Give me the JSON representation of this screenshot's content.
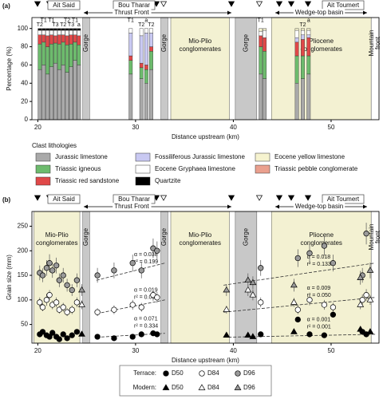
{
  "chart_data": [
    {
      "type": "bar",
      "panel": "(a)",
      "xlabel": "Distance upstream (km)",
      "ylabel": "Percentage (%)",
      "xlim": [
        19.4,
        54.9
      ],
      "xticks": [
        20,
        30,
        40,
        50
      ],
      "ylim": [
        0,
        112
      ],
      "yticks": [
        0,
        20,
        40,
        60,
        80,
        100
      ],
      "locations": [
        "Ait Said",
        "Bou Tharar",
        "Ait Toumert"
      ],
      "zones": [
        "Thrust Front",
        "Wedge-top basin"
      ],
      "regions": [
        {
          "x": [
            24.6,
            25.3
          ],
          "color": "#c8c8c8",
          "label": [
            "Gorge"
          ]
        },
        {
          "x": [
            32.6,
            33.3
          ],
          "color": "#c8c8c8",
          "label": [
            "Gorge"
          ]
        },
        {
          "x": [
            33.6,
            39.6
          ],
          "color": "#f3f1d2",
          "label": [
            "Mio-Plio",
            "conglomerates"
          ]
        },
        {
          "x": [
            40.2,
            42.4
          ],
          "color": "#c8c8c8",
          "label": [
            "Gorge"
          ]
        },
        {
          "x": [
            43.9,
            54.1
          ],
          "color": "#f3f1d2",
          "label": [
            "Pliocene",
            "conglomerates"
          ]
        },
        {
          "x": [
            54.1,
            54.9
          ],
          "color": "#ffffff",
          "label": [
            "Mountain",
            "front"
          ]
        }
      ],
      "x": [
        20.2,
        20.6,
        21.0,
        21.4,
        21.8,
        22.2,
        22.6,
        23.0,
        23.4,
        23.8,
        24.2,
        29.5,
        30.6,
        31.1,
        31.6,
        42.8,
        43.2,
        46.5,
        47.1,
        47.7
      ],
      "bar_labels": [
        "T2",
        "T1",
        null,
        "T1",
        "T3",
        null,
        "T2",
        "T2",
        "T3",
        "T1",
        "a",
        "T1",
        "T2",
        "a",
        "T2",
        "T1",
        null,
        null,
        "T2",
        "a"
      ],
      "legend_title": "Clast lithologies",
      "series": [
        {
          "name": "Jurassic limestone",
          "color": "#a9a9a9",
          "values": [
            55,
            60,
            50,
            58,
            62,
            55,
            60,
            52,
            58,
            65,
            60,
            50,
            45,
            40,
            55,
            50,
            45,
            40,
            45,
            50
          ]
        },
        {
          "name": "Triassic igneous",
          "color": "#6dbb6d",
          "values": [
            28,
            25,
            30,
            25,
            22,
            28,
            25,
            30,
            25,
            20,
            22,
            15,
            12,
            15,
            20,
            30,
            30,
            30,
            25,
            20
          ]
        },
        {
          "name": "Triassic red sandstone",
          "color": "#e04848",
          "values": [
            10,
            8,
            12,
            10,
            8,
            10,
            8,
            10,
            10,
            8,
            10,
            5,
            5,
            5,
            5,
            12,
            15,
            15,
            18,
            20
          ]
        },
        {
          "name": "Fossiliferous Jurassic limestone",
          "color": "#c9c9f2",
          "values": [
            0,
            0,
            0,
            0,
            0,
            0,
            0,
            0,
            0,
            0,
            0,
            25,
            30,
            35,
            15,
            0,
            0,
            5,
            5,
            3
          ]
        },
        {
          "name": "Eocene Gryphaea limestone",
          "color": "#ffffff",
          "values": [
            5,
            5,
            6,
            5,
            6,
            5,
            5,
            6,
            5,
            5,
            6,
            5,
            8,
            5,
            5,
            5,
            8,
            8,
            5,
            5
          ]
        },
        {
          "name": "Quartzite",
          "color": "#000000",
          "values": [
            2,
            2,
            2,
            2,
            2,
            2,
            2,
            2,
            2,
            2,
            2,
            0,
            0,
            0,
            0,
            0,
            0,
            0,
            0,
            0
          ]
        },
        {
          "name": "Eocene yellow limestone",
          "color": "#f6f3cf",
          "values": [
            0,
            0,
            0,
            0,
            0,
            0,
            0,
            0,
            0,
            0,
            0,
            0,
            0,
            0,
            0,
            3,
            2,
            2,
            2,
            2
          ]
        },
        {
          "name": "Triassic pebble conglomerate",
          "color": "#eaa08e",
          "values": [
            0,
            0,
            0,
            0,
            0,
            0,
            0,
            0,
            0,
            0,
            0,
            0,
            0,
            0,
            0,
            0,
            0,
            0,
            0,
            0
          ]
        }
      ]
    },
    {
      "type": "scatter",
      "panel": "(b)",
      "xlabel": "Distance upstream (km)",
      "ylabel": "Grain size (mm)",
      "xlim": [
        19.4,
        54.9
      ],
      "xticks": [
        20,
        30,
        40,
        50
      ],
      "ylim": [
        12,
        280
      ],
      "yticks": [
        50,
        100,
        150,
        200,
        250
      ],
      "locations": [
        "Ait Said",
        "Bou Tharar",
        "Ait Toumert"
      ],
      "zones": [
        "Thrust Front",
        "Wedge-top basin"
      ],
      "regions": [
        {
          "x": [
            19.6,
            24.3
          ],
          "color": "#f3f1d2",
          "label": [
            "Mio-Plio",
            "conglomerates"
          ]
        },
        {
          "x": [
            24.6,
            25.3
          ],
          "color": "#c8c8c8",
          "label": [
            "Gorge"
          ]
        },
        {
          "x": [
            32.6,
            33.3
          ],
          "color": "#c8c8c8",
          "label": [
            "Gorge"
          ]
        },
        {
          "x": [
            33.6,
            39.6
          ],
          "color": "#f3f1d2",
          "label": [
            "Mio-Plio",
            "conglomerates"
          ]
        },
        {
          "x": [
            40.2,
            42.4
          ],
          "color": "#c8c8c8",
          "label": [
            "Gorge"
          ]
        },
        {
          "x": [
            43.9,
            54.1
          ],
          "color": "#f3f1d2",
          "label": [
            "Pliocene",
            "conglomerates"
          ]
        },
        {
          "x": [
            54.1,
            54.9
          ],
          "color": "#ffffff",
          "label": [
            "Mountain",
            "front"
          ]
        }
      ],
      "groups": [
        {
          "name": "Terrace:",
          "marker": "circle",
          "series": [
            {
              "name": "D50",
              "color": "#000000",
              "x": [
                20.2,
                20.5,
                20.9,
                21.2,
                21.5,
                21.9,
                22.2,
                22.6,
                23.0,
                23.5,
                24.0,
                26.1,
                27.8,
                29.7,
                30.6,
                31.8,
                32.2,
                42.8,
                46.6,
                47.8,
                49.3,
                50.2,
                53.2,
                53.6
              ],
              "values": [
                30,
                35,
                28,
                25,
                33,
                25,
                20,
                30,
                22,
                28,
                35,
                25,
                22,
                25,
                30,
                32,
                30,
                30,
                60,
                30,
                28,
                70,
                35,
                30
              ]
            },
            {
              "name": "D84",
              "color": "#ffffff",
              "x": [
                20.2,
                20.5,
                20.9,
                21.2,
                21.5,
                21.9,
                22.2,
                22.6,
                23.0,
                23.5,
                24.0,
                26.1,
                27.8,
                29.7,
                30.6,
                31.8,
                32.2,
                42.8,
                46.6,
                47.8,
                49.3,
                50.2,
                53.2,
                53.6
              ],
              "values": [
                95,
                85,
                100,
                110,
                90,
                95,
                80,
                85,
                75,
                80,
                95,
                75,
                80,
                90,
                85,
                110,
                105,
                95,
                80,
                100,
                90,
                85,
                100,
                110
              ],
              "errors": [
                10,
                8,
                12,
                10,
                9,
                10,
                8,
                9,
                8,
                9,
                10,
                8,
                9,
                10,
                9,
                12,
                11,
                10,
                9,
                11,
                10,
                9,
                11,
                12
              ]
            },
            {
              "name": "D96",
              "color": "#9a9a9a",
              "x": [
                20.2,
                20.5,
                20.9,
                21.2,
                21.5,
                21.9,
                22.2,
                22.6,
                23.0,
                23.5,
                24.0,
                26.1,
                27.8,
                29.7,
                30.6,
                31.8,
                32.2,
                42.8,
                46.6,
                47.8,
                49.3,
                50.2,
                53.2,
                53.6
              ],
              "values": [
                155,
                150,
                165,
                175,
                160,
                170,
                140,
                150,
                130,
                120,
                140,
                150,
                160,
                175,
                160,
                205,
                200,
                165,
                185,
                195,
                210,
                175,
                150,
                235
              ],
              "errors": [
                15,
                14,
                16,
                18,
                15,
                16,
                14,
                15,
                13,
                12,
                14,
                15,
                16,
                17,
                16,
                20,
                19,
                16,
                18,
                19,
                20,
                17,
                15,
                22
              ]
            }
          ]
        },
        {
          "name": "Modern:",
          "marker": "triangle",
          "series": [
            {
              "name": "D50",
              "color": "#000000",
              "x": [
                24.5,
                39.3,
                41.5,
                42.0,
                46.2,
                53.0,
                54.0
              ],
              "values": [
                30,
                28,
                28,
                25,
                35,
                40,
                35
              ]
            },
            {
              "name": "D84",
              "color": "#ffffff",
              "x": [
                24.5,
                39.3,
                41.5,
                42.0,
                46.2,
                53.0,
                54.0
              ],
              "values": [
                90,
                80,
                120,
                110,
                95,
                90,
                100
              ],
              "errors": [
                9,
                8,
                12,
                11,
                9,
                9,
                10
              ]
            },
            {
              "name": "D96",
              "color": "#9a9a9a",
              "x": [
                24.5,
                39.3,
                41.5,
                42.0,
                46.2,
                53.0,
                54.0
              ],
              "values": [
                120,
                120,
                140,
                135,
                130,
                145,
                160
              ],
              "errors": [
                12,
                12,
                14,
                13,
                13,
                14,
                16
              ]
            }
          ]
        }
      ],
      "fits": [
        {
          "x": [
            26,
            33
          ],
          "y": [
            140,
            175
          ],
          "alpha": "α = 0.038",
          "r2": "r² = 0.199"
        },
        {
          "x": [
            26,
            33
          ],
          "y": [
            72,
            100
          ],
          "alpha": "α = 0.019",
          "r2": "r² = 0.054"
        },
        {
          "x": [
            26,
            33
          ],
          "y": [
            24,
            32
          ],
          "alpha": "α = 0.071",
          "r2": "r² = 0.334"
        },
        {
          "x": [
            39,
            54.5
          ],
          "y": [
            130,
            175
          ],
          "alpha": "α = 0.018",
          "r2": "r² = 0.133"
        },
        {
          "x": [
            39,
            54.5
          ],
          "y": [
            75,
            105
          ],
          "alpha": "α = 0.009",
          "r2": "r² = 0.050"
        },
        {
          "x": [
            39,
            54.5
          ],
          "y": [
            24,
            30
          ],
          "alpha": "α = 0.001",
          "r2": "r² = 0.001"
        }
      ]
    }
  ]
}
